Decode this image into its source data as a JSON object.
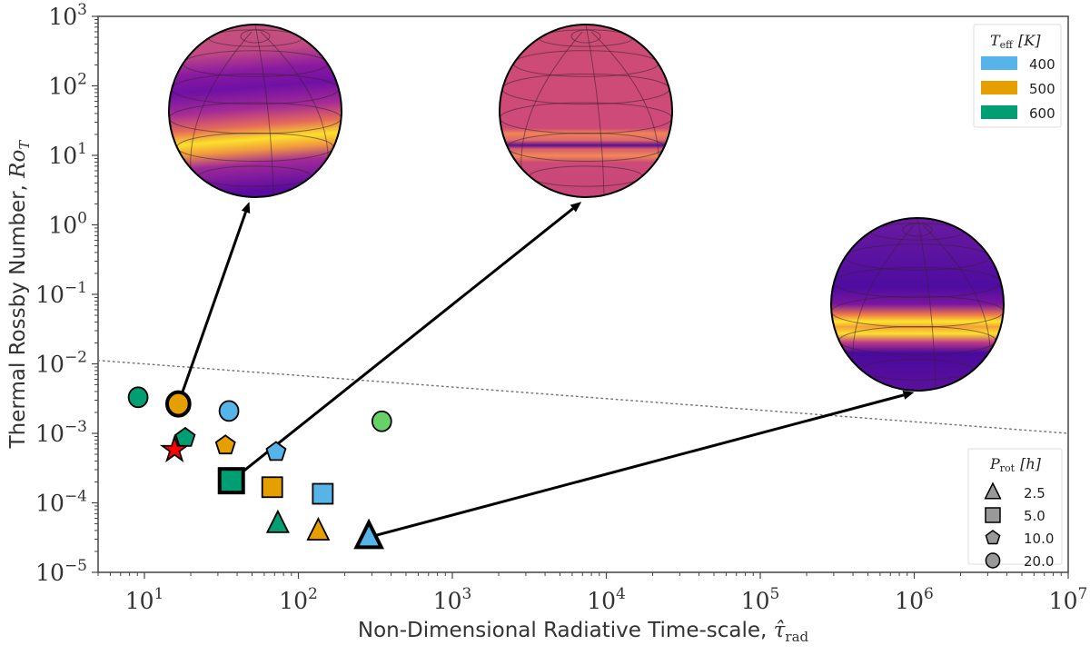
{
  "chart_data": {
    "type": "scatter",
    "title": "",
    "xlabel": "Non-Dimensional Radiative Time-scale, ",
    "xlabel_symbol": "τ̂",
    "xlabel_sub": "rad",
    "ylabel": "Thermal Rossby Number, ",
    "ylabel_symbol": "Ro",
    "ylabel_sub": "T",
    "xscale": "log",
    "yscale": "log",
    "xlim": [
      5,
      10000000
    ],
    "ylim": [
      1e-05,
      1000
    ],
    "grid": false,
    "x_ticks": [
      {
        "value": 10,
        "base": "10",
        "exp": "1"
      },
      {
        "value": 100,
        "base": "10",
        "exp": "2"
      },
      {
        "value": 1000,
        "base": "10",
        "exp": "3"
      },
      {
        "value": 10000,
        "base": "10",
        "exp": "4"
      },
      {
        "value": 100000,
        "base": "10",
        "exp": "5"
      },
      {
        "value": 1000000,
        "base": "10",
        "exp": "6"
      },
      {
        "value": 10000000,
        "base": "10",
        "exp": "7"
      }
    ],
    "y_ticks": [
      {
        "value": 1e-05,
        "base": "10",
        "exp": "−5"
      },
      {
        "value": 0.0001,
        "base": "10",
        "exp": "−4"
      },
      {
        "value": 0.001,
        "base": "10",
        "exp": "−3"
      },
      {
        "value": 0.01,
        "base": "10",
        "exp": "−2"
      },
      {
        "value": 0.1,
        "base": "10",
        "exp": "−1"
      },
      {
        "value": 1,
        "base": "10",
        "exp": "0"
      },
      {
        "value": 10,
        "base": "10",
        "exp": "1"
      },
      {
        "value": 100,
        "base": "10",
        "exp": "2"
      },
      {
        "value": 1000,
        "base": "10",
        "exp": "3"
      }
    ],
    "reference_line": {
      "style": "dotted",
      "color": "#777777",
      "x": [
        5,
        10000000
      ],
      "y": [
        0.0112,
        0.001
      ]
    },
    "points": [
      {
        "teff": 600,
        "prot": 20.0,
        "x": 9.1,
        "y": 0.0033,
        "marker": "circle",
        "color": "#009e73",
        "highlighted": false
      },
      {
        "teff": 500,
        "prot": 20.0,
        "x": 16.6,
        "y": 0.00265,
        "marker": "circle",
        "color": "#e69f00",
        "highlighted": true
      },
      {
        "teff": 400,
        "prot": 20.0,
        "x": 35.4,
        "y": 0.0021,
        "marker": "circle",
        "color": "#56b4e9",
        "highlighted": false
      },
      {
        "teff": null,
        "prot": 20.0,
        "x": 348,
        "y": 0.00149,
        "marker": "circle",
        "color": "#66d166",
        "highlighted": false
      },
      {
        "teff": 600,
        "prot": 10.0,
        "x": 18.4,
        "y": 0.00086,
        "marker": "pentagon",
        "color": "#009e73",
        "highlighted": false
      },
      {
        "teff": null,
        "prot": null,
        "x": 15.7,
        "y": 0.00058,
        "marker": "star",
        "color": "#ff0000",
        "highlighted": false
      },
      {
        "teff": 500,
        "prot": 10.0,
        "x": 33.6,
        "y": 0.00067,
        "marker": "pentagon",
        "color": "#e69f00",
        "highlighted": false
      },
      {
        "teff": 400,
        "prot": 10.0,
        "x": 71.6,
        "y": 0.00054,
        "marker": "pentagon",
        "color": "#56b4e9",
        "highlighted": false
      },
      {
        "teff": 600,
        "prot": 5.0,
        "x": 36.7,
        "y": 0.000208,
        "marker": "square",
        "color": "#009e73",
        "highlighted": true
      },
      {
        "teff": 500,
        "prot": 5.0,
        "x": 67.6,
        "y": 0.000168,
        "marker": "square",
        "color": "#e69f00",
        "highlighted": false
      },
      {
        "teff": 400,
        "prot": 5.0,
        "x": 144,
        "y": 0.000135,
        "marker": "square",
        "color": "#56b4e9",
        "highlighted": false
      },
      {
        "teff": 600,
        "prot": 2.5,
        "x": 73.5,
        "y": 5e-05,
        "marker": "triangle",
        "color": "#009e73",
        "highlighted": false
      },
      {
        "teff": 500,
        "prot": 2.5,
        "x": 134.6,
        "y": 3.9e-05,
        "marker": "triangle",
        "color": "#e69f00",
        "highlighted": false
      },
      {
        "teff": 400,
        "prot": 2.5,
        "x": 287,
        "y": 3.2e-05,
        "marker": "triangle",
        "color": "#56b4e9",
        "highlighted": true
      }
    ],
    "arrows": [
      {
        "from": [
          16.6,
          0.00265
        ],
        "to": [
          48,
          2.15
        ],
        "inset": "globe-1"
      },
      {
        "from": [
          36.7,
          0.000208
        ],
        "to": [
          6900,
          2.15
        ],
        "inset": "globe-2"
      },
      {
        "from": [
          287,
          3.2e-05
        ],
        "to": [
          1000000,
          0.0039
        ],
        "inset": "globe-3"
      }
    ],
    "insets": [
      {
        "id": "globe-1",
        "pattern": "single bright equatorial jet, off-equator, purple mid-latitudes"
      },
      {
        "id": "globe-2",
        "pattern": "pinkish uniform with double orange bands around equator, polar vortex"
      },
      {
        "id": "globe-3",
        "pattern": "dark purple with narrow bright yellow equatorial band"
      }
    ],
    "legends": [
      {
        "title": "T",
        "title_sub": "eff",
        "title_unit": "[K]",
        "placement": "top-right",
        "entries": [
          {
            "label": "400",
            "color": "#56b4e9"
          },
          {
            "label": "500",
            "color": "#e69f00"
          },
          {
            "label": "600",
            "color": "#009e73"
          }
        ]
      },
      {
        "title": "P",
        "title_sub": "rot",
        "title_unit": "[h]",
        "placement": "bottom-right",
        "entries": [
          {
            "label": "2.5",
            "marker": "triangle"
          },
          {
            "label": "5.0",
            "marker": "square"
          },
          {
            "label": "10.0",
            "marker": "pentagon"
          },
          {
            "label": "20.0",
            "marker": "circle"
          }
        ]
      }
    ]
  }
}
